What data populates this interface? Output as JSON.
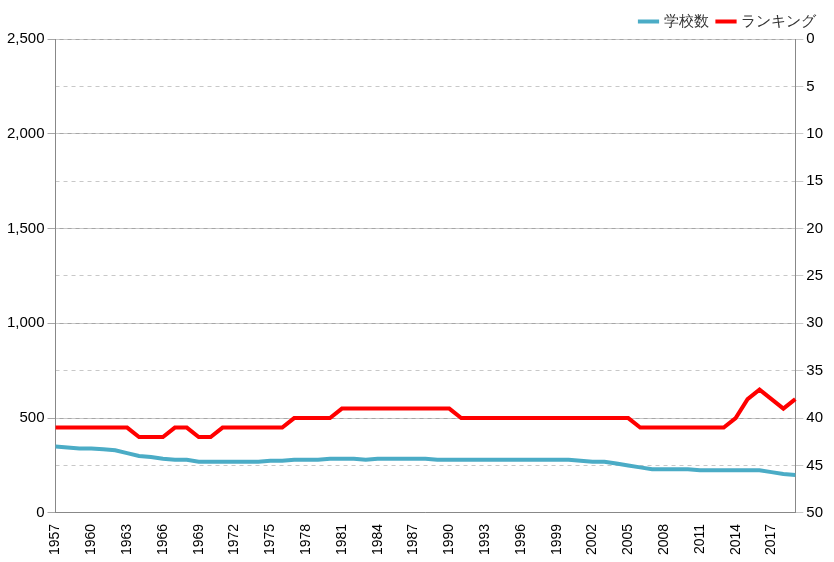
{
  "chart_data": {
    "type": "line",
    "categories": [
      "1957",
      null,
      null,
      "1960",
      null,
      null,
      "1963",
      null,
      null,
      "1966",
      null,
      null,
      "1969",
      null,
      null,
      "1972",
      null,
      null,
      "1975",
      null,
      null,
      "1978",
      null,
      null,
      "1981",
      null,
      null,
      "1984",
      null,
      null,
      "1987",
      null,
      null,
      "1990",
      null,
      null,
      "1993",
      null,
      null,
      "1996",
      null,
      null,
      "1999",
      null,
      null,
      "2002",
      null,
      null,
      "2005",
      null,
      null,
      "2008",
      null,
      null,
      "2011",
      null,
      null,
      "2014",
      null,
      null,
      "2017",
      null,
      null
    ],
    "series": [
      {
        "name": "学校数",
        "color": "#4bacc6",
        "values": [
          350,
          345,
          340,
          340,
          335,
          330,
          315,
          300,
          295,
          285,
          280,
          280,
          270,
          270,
          270,
          270,
          270,
          270,
          275,
          275,
          280,
          280,
          280,
          285,
          285,
          285,
          280,
          285,
          285,
          285,
          285,
          285,
          280,
          280,
          280,
          280,
          280,
          280,
          280,
          280,
          280,
          280,
          280,
          280,
          275,
          270,
          270,
          260,
          250,
          240,
          230,
          230,
          230,
          230,
          225,
          225,
          225,
          225,
          225,
          225,
          215,
          205,
          200
        ]
      },
      {
        "name": "ランキング",
        "color": "#ff0000",
        "axis": "y2",
        "values": [
          41,
          41,
          41,
          41,
          41,
          41,
          41,
          42,
          42,
          42,
          41,
          41,
          42,
          42,
          41,
          41,
          41,
          41,
          41,
          41,
          40,
          40,
          40,
          40,
          39,
          39,
          39,
          39,
          39,
          39,
          39,
          39,
          39,
          39,
          40,
          40,
          40,
          40,
          40,
          40,
          40,
          40,
          40,
          40,
          40,
          40,
          40,
          40,
          40,
          41,
          41,
          41,
          41,
          41,
          41,
          41,
          41,
          40,
          38,
          37,
          38,
          39,
          38
        ]
      }
    ],
    "ylim": [
      0,
      2500
    ],
    "yticks": [
      0,
      500,
      {
        "value": 1000,
        "label": "1,000"
      },
      {
        "value": 1500,
        "label": "1,500"
      },
      {
        "value": 2000,
        "label": "2,000"
      },
      {
        "value": 2500,
        "label": "2,500"
      }
    ],
    "y2lim": [
      50,
      0
    ],
    "y2ticks": [
      0,
      5,
      10,
      15,
      20,
      25,
      30,
      35,
      40,
      45,
      50
    ],
    "grid": true,
    "legend": "top-right"
  }
}
